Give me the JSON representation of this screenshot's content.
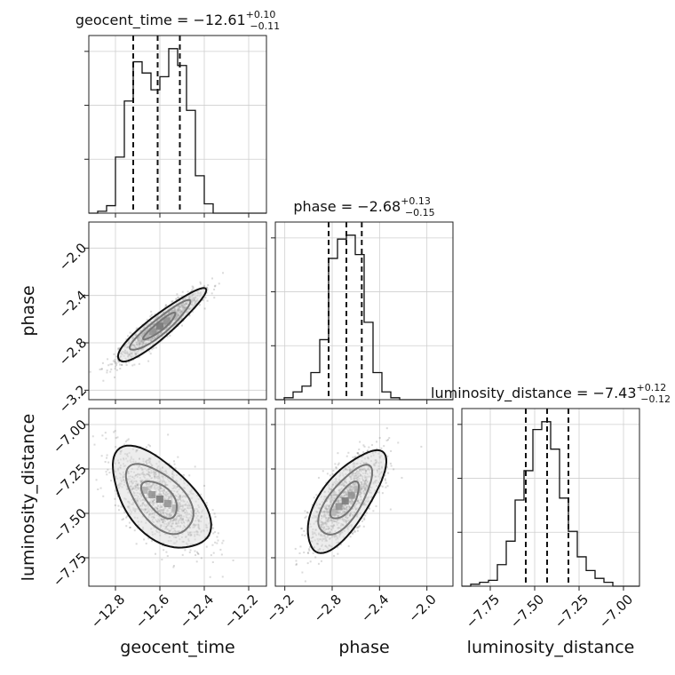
{
  "chart_data": {
    "type": "corner",
    "parameters": [
      "geocent_time",
      "phase",
      "luminosity_distance"
    ],
    "titles": [
      {
        "name": "geocent_time",
        "median": "−12.61",
        "plus": "+0.10",
        "minus": "−0.11"
      },
      {
        "name": "phase",
        "median": "−2.68",
        "plus": "+0.13",
        "minus": "−0.15"
      },
      {
        "name": "luminosity_distance",
        "median": "−7.43",
        "plus": "+0.12",
        "minus": "−0.12"
      }
    ],
    "ranges": [
      [
        -12.92,
        -12.12
      ],
      [
        -3.28,
        -1.78
      ],
      [
        -7.91,
        -6.91
      ]
    ],
    "tick_values": [
      [
        -12.8,
        -12.6,
        -12.4,
        -12.2
      ],
      [
        -3.2,
        -2.8,
        -2.4,
        -2.0
      ],
      [
        -7.75,
        -7.5,
        -7.25,
        -7.0
      ]
    ],
    "tick_labels": [
      [
        "−12.8",
        "−12.6",
        "−12.4",
        "−12.2"
      ],
      [
        "−3.2",
        "−2.8",
        "−2.4",
        "−2.0"
      ],
      [
        "−7.75",
        "−7.50",
        "−7.25",
        "−7.00"
      ]
    ],
    "quantiles": [
      [
        -12.72,
        -12.61,
        -12.51
      ],
      [
        -2.83,
        -2.68,
        -2.55
      ],
      [
        -7.55,
        -7.43,
        -7.31
      ]
    ],
    "histograms": [
      {
        "parameter": "geocent_time",
        "edges": [
          -12.92,
          -12.12
        ],
        "counts": [
          0,
          1,
          4,
          30,
          60,
          81,
          75,
          66,
          73,
          88,
          79,
          55,
          20,
          5,
          0,
          0,
          0,
          0,
          0,
          0
        ]
      },
      {
        "parameter": "phase",
        "edges": [
          -3.28,
          -1.78
        ],
        "counts": [
          0,
          1,
          4,
          7,
          14,
          31,
          73,
          83,
          85,
          75,
          40,
          14,
          4,
          1,
          0,
          0,
          0,
          0,
          0,
          0
        ]
      },
      {
        "parameter": "luminosity_distance",
        "edges": [
          -7.91,
          -6.91
        ],
        "counts": [
          0,
          1,
          2,
          3,
          11,
          23,
          44,
          59,
          80,
          84,
          70,
          45,
          28,
          15,
          8,
          4,
          2,
          0,
          0,
          0
        ]
      }
    ],
    "joint": [
      {
        "x": "geocent_time",
        "y": "phase",
        "center": [
          -12.6,
          -2.66
        ],
        "sd": [
          0.09,
          0.14
        ],
        "corr": 0.92
      },
      {
        "x": "geocent_time",
        "y": "luminosity_distance",
        "center": [
          -12.6,
          -7.42
        ],
        "sd": [
          0.1,
          0.13
        ],
        "corr": -0.55
      },
      {
        "x": "phase",
        "y": "luminosity_distance",
        "center": [
          -2.69,
          -7.43
        ],
        "sd": [
          0.15,
          0.13
        ],
        "corr": 0.7
      }
    ]
  }
}
